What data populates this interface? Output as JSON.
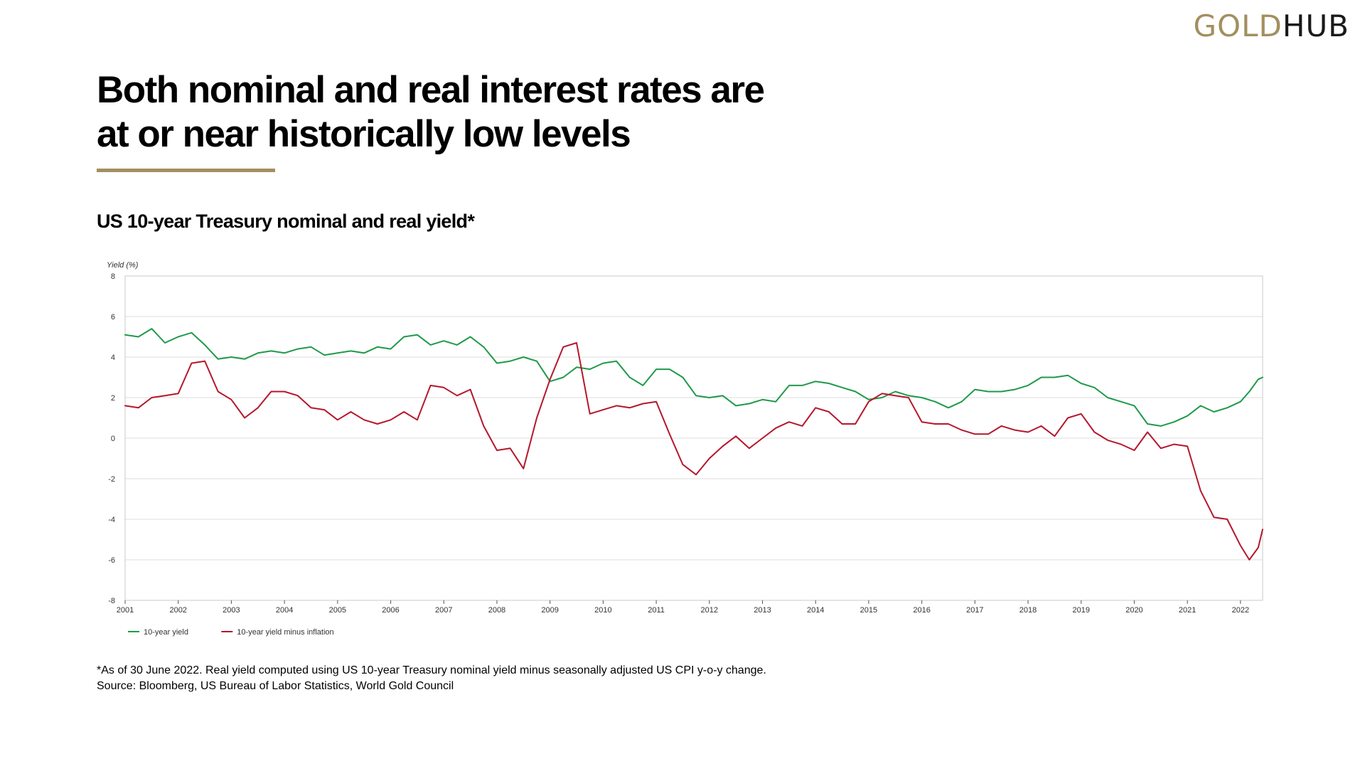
{
  "brand": {
    "logo_gold": "GOLD",
    "logo_hub": "HUB",
    "accent_color": "#a38f5e"
  },
  "headline": {
    "line1": "Both nominal and real interest rates are",
    "line2": "at or near historically low levels"
  },
  "subtitle": "US 10-year Treasury nominal and real yield*",
  "footnote": {
    "note": "*As of 30 June 2022. Real yield computed using US 10-year Treasury nominal yield minus seasonally adjusted US CPI y-o-y change.",
    "source": "Source: Bloomberg, US Bureau of Labor Statistics, World Gold Council"
  },
  "chart_data": {
    "type": "line",
    "title": "US 10-year Treasury nominal and real yield*",
    "ylabel": "Yield (%)",
    "xlabel": "",
    "ylim": [
      -8,
      8
    ],
    "yticks": [
      -8,
      -6,
      -4,
      -2,
      0,
      2,
      4,
      6,
      8
    ],
    "xlim": [
      "2001-01",
      "2022-06"
    ],
    "xticks": [
      "2001",
      "2002",
      "2003",
      "2004",
      "2005",
      "2006",
      "2007",
      "2008",
      "2009",
      "2010",
      "2011",
      "2012",
      "2013",
      "2014",
      "2015",
      "2016",
      "2017",
      "2018",
      "2019",
      "2020",
      "2021",
      "2022"
    ],
    "grid": "horizontal",
    "legend_position": "bottom-left",
    "series": [
      {
        "name": "10-year yield",
        "color": "#1f9a4a",
        "x": [
          "2001-01",
          "2001-04",
          "2001-07",
          "2001-10",
          "2002-01",
          "2002-04",
          "2002-07",
          "2002-10",
          "2003-01",
          "2003-04",
          "2003-07",
          "2003-10",
          "2004-01",
          "2004-04",
          "2004-07",
          "2004-10",
          "2005-01",
          "2005-04",
          "2005-07",
          "2005-10",
          "2006-01",
          "2006-04",
          "2006-07",
          "2006-10",
          "2007-01",
          "2007-04",
          "2007-07",
          "2007-10",
          "2008-01",
          "2008-04",
          "2008-07",
          "2008-10",
          "2009-01",
          "2009-04",
          "2009-07",
          "2009-10",
          "2010-01",
          "2010-04",
          "2010-07",
          "2010-10",
          "2011-01",
          "2011-04",
          "2011-07",
          "2011-10",
          "2012-01",
          "2012-04",
          "2012-07",
          "2012-10",
          "2013-01",
          "2013-04",
          "2013-07",
          "2013-10",
          "2014-01",
          "2014-04",
          "2014-07",
          "2014-10",
          "2015-01",
          "2015-04",
          "2015-07",
          "2015-10",
          "2016-01",
          "2016-04",
          "2016-07",
          "2016-10",
          "2017-01",
          "2017-04",
          "2017-07",
          "2017-10",
          "2018-01",
          "2018-04",
          "2018-07",
          "2018-10",
          "2019-01",
          "2019-04",
          "2019-07",
          "2019-10",
          "2020-01",
          "2020-04",
          "2020-07",
          "2020-10",
          "2021-01",
          "2021-04",
          "2021-07",
          "2021-10",
          "2022-01",
          "2022-03",
          "2022-05",
          "2022-06"
        ],
        "values": [
          5.1,
          5.0,
          5.4,
          4.7,
          5.0,
          5.2,
          4.6,
          3.9,
          4.0,
          3.9,
          4.2,
          4.3,
          4.2,
          4.4,
          4.5,
          4.1,
          4.2,
          4.3,
          4.2,
          4.5,
          4.4,
          5.0,
          5.1,
          4.6,
          4.8,
          4.6,
          5.0,
          4.5,
          3.7,
          3.8,
          4.0,
          3.8,
          2.8,
          3.0,
          3.5,
          3.4,
          3.7,
          3.8,
          3.0,
          2.6,
          3.4,
          3.4,
          3.0,
          2.1,
          2.0,
          2.1,
          1.6,
          1.7,
          1.9,
          1.8,
          2.6,
          2.6,
          2.8,
          2.7,
          2.5,
          2.3,
          1.9,
          2.0,
          2.3,
          2.1,
          2.0,
          1.8,
          1.5,
          1.8,
          2.4,
          2.3,
          2.3,
          2.4,
          2.6,
          3.0,
          3.0,
          3.1,
          2.7,
          2.5,
          2.0,
          1.8,
          1.6,
          0.7,
          0.6,
          0.8,
          1.1,
          1.6,
          1.3,
          1.5,
          1.8,
          2.3,
          2.9,
          3.0
        ]
      },
      {
        "name": "10-year yield minus inflation",
        "color": "#b5172c",
        "x": [
          "2001-01",
          "2001-04",
          "2001-07",
          "2001-10",
          "2002-01",
          "2002-04",
          "2002-07",
          "2002-10",
          "2003-01",
          "2003-04",
          "2003-07",
          "2003-10",
          "2004-01",
          "2004-04",
          "2004-07",
          "2004-10",
          "2005-01",
          "2005-04",
          "2005-07",
          "2005-10",
          "2006-01",
          "2006-04",
          "2006-07",
          "2006-10",
          "2007-01",
          "2007-04",
          "2007-07",
          "2007-10",
          "2008-01",
          "2008-04",
          "2008-07",
          "2008-10",
          "2009-01",
          "2009-04",
          "2009-07",
          "2009-10",
          "2010-01",
          "2010-04",
          "2010-07",
          "2010-10",
          "2011-01",
          "2011-04",
          "2011-07",
          "2011-10",
          "2012-01",
          "2012-04",
          "2012-07",
          "2012-10",
          "2013-01",
          "2013-04",
          "2013-07",
          "2013-10",
          "2014-01",
          "2014-04",
          "2014-07",
          "2014-10",
          "2015-01",
          "2015-04",
          "2015-07",
          "2015-10",
          "2016-01",
          "2016-04",
          "2016-07",
          "2016-10",
          "2017-01",
          "2017-04",
          "2017-07",
          "2017-10",
          "2018-01",
          "2018-04",
          "2018-07",
          "2018-10",
          "2019-01",
          "2019-04",
          "2019-07",
          "2019-10",
          "2020-01",
          "2020-04",
          "2020-07",
          "2020-10",
          "2021-01",
          "2021-04",
          "2021-07",
          "2021-10",
          "2022-01",
          "2022-03",
          "2022-05",
          "2022-06"
        ],
        "values": [
          1.6,
          1.5,
          2.0,
          2.1,
          2.2,
          3.7,
          3.8,
          2.3,
          1.9,
          1.0,
          1.5,
          2.3,
          2.3,
          2.1,
          1.5,
          1.4,
          0.9,
          1.3,
          0.9,
          0.7,
          0.9,
          1.3,
          0.9,
          2.6,
          2.5,
          2.1,
          2.4,
          0.6,
          -0.6,
          -0.5,
          -1.5,
          1.0,
          2.9,
          4.5,
          4.7,
          1.2,
          1.4,
          1.6,
          1.5,
          1.7,
          1.8,
          0.2,
          -1.3,
          -1.8,
          -1.0,
          -0.4,
          0.1,
          -0.5,
          0.0,
          0.5,
          0.8,
          0.6,
          1.5,
          1.3,
          0.7,
          0.7,
          1.8,
          2.2,
          2.1,
          2.0,
          0.8,
          0.7,
          0.7,
          0.4,
          0.2,
          0.2,
          0.6,
          0.4,
          0.3,
          0.6,
          0.1,
          1.0,
          1.2,
          0.3,
          -0.1,
          -0.3,
          -0.6,
          0.3,
          -0.5,
          -0.3,
          -0.4,
          -2.6,
          -3.9,
          -4.0,
          -5.3,
          -6.0,
          -5.4,
          -4.5
        ]
      }
    ]
  }
}
